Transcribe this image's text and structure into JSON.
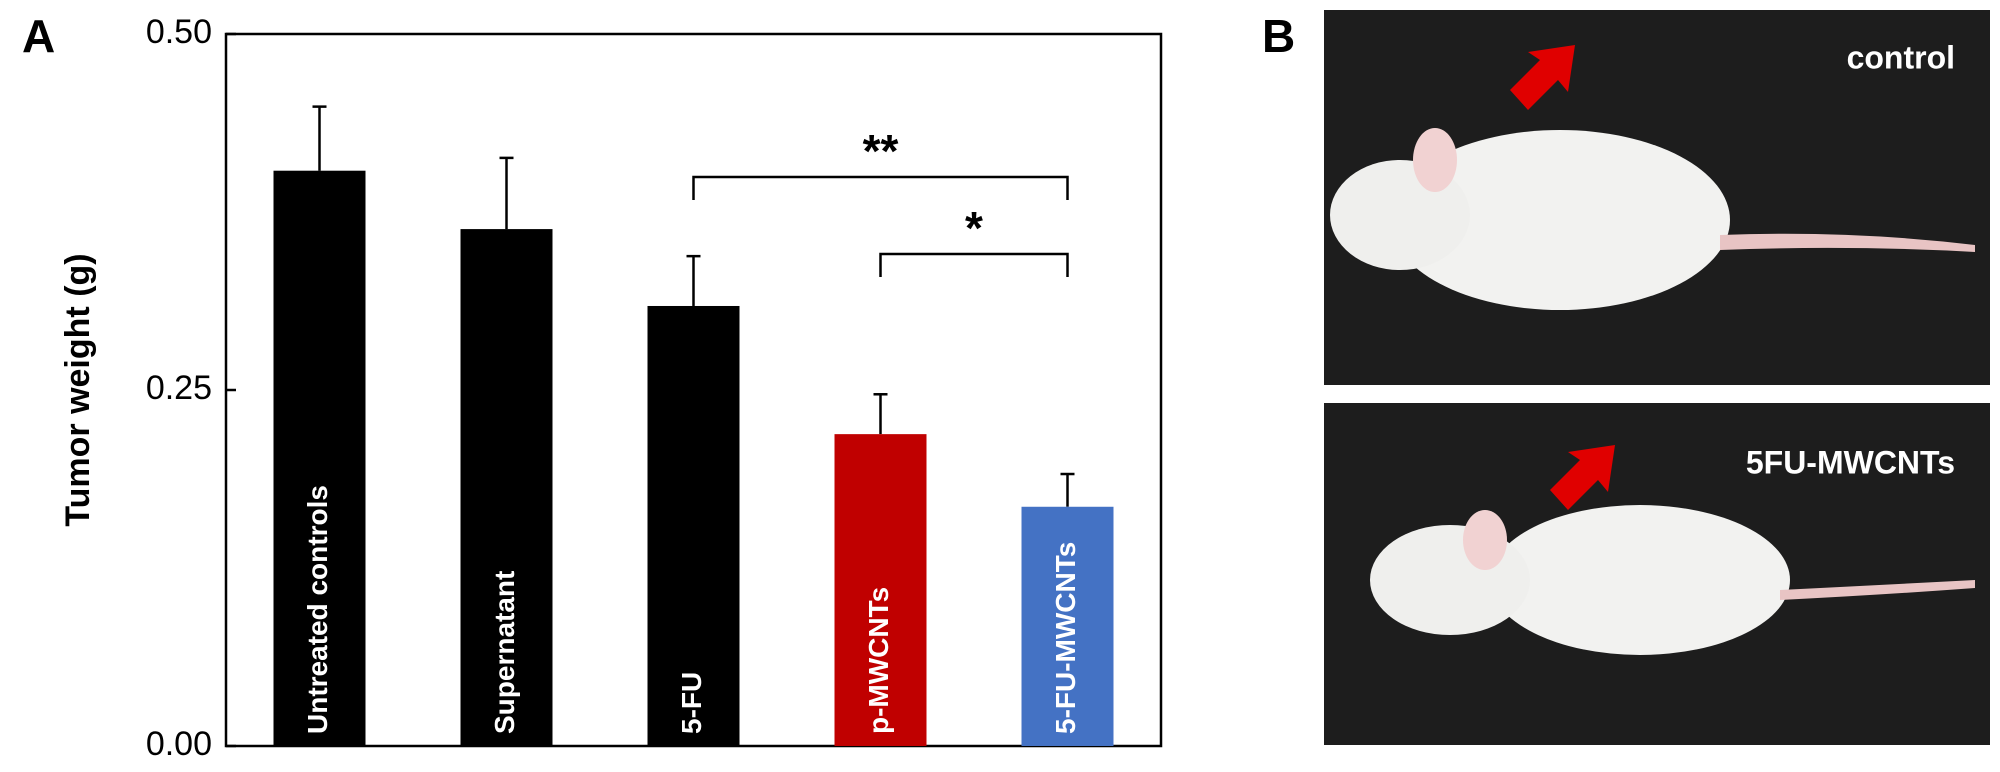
{
  "chart_data": {
    "type": "bar",
    "y_label": "Tumor weight (g)",
    "categories": [
      "Untreated controls",
      "Supernatant",
      "5-FU",
      "p-MWCNTs",
      "5-FU-MWCNTs"
    ],
    "values": [
      0.404,
      0.363,
      0.309,
      0.219,
      0.168
    ],
    "errors": [
      0.045,
      0.05,
      0.035,
      0.028,
      0.023
    ],
    "colors": [
      "#000000",
      "#000000",
      "#000000",
      "#c00000",
      "#4472c4"
    ],
    "ylim": [
      0,
      0.5
    ],
    "yticks": [
      {
        "value": 0,
        "label": "0.00"
      },
      0.25,
      {
        "value": 0.5,
        "label": "0.50"
      }
    ],
    "grid": false,
    "annotations": [
      {
        "text": "**",
        "from": 2,
        "to": 4
      },
      {
        "text": "*",
        "from": 3,
        "to": 4
      }
    ]
  },
  "figure": {
    "panel_labels": [
      "A",
      "B"
    ],
    "photos": [
      {
        "label": "control"
      },
      {
        "label": "5FU-MWCNTs"
      }
    ]
  }
}
